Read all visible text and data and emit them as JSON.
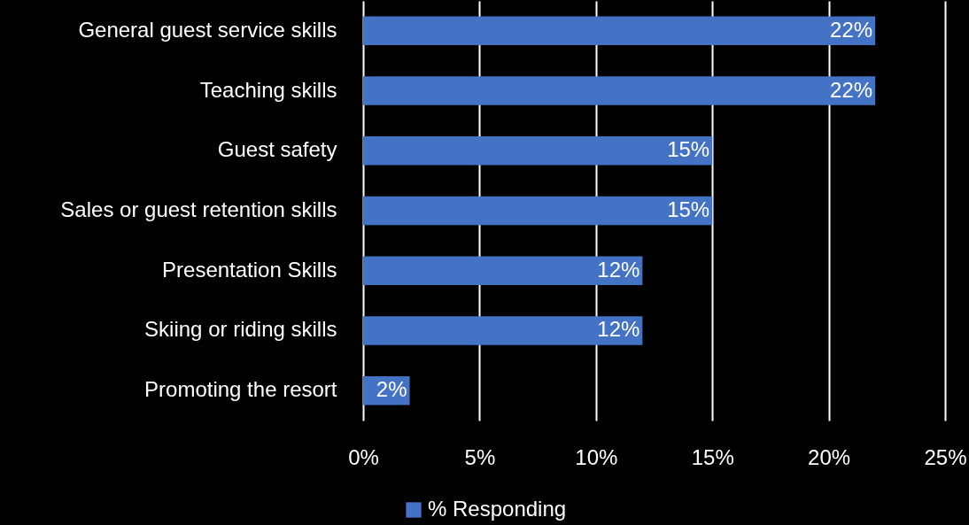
{
  "chart_data": {
    "type": "bar",
    "orientation": "horizontal",
    "categories": [
      "General guest service skills",
      "Teaching skills",
      "Guest safety",
      "Sales or guest retention skills",
      "Presentation Skills",
      "Skiing or riding skills",
      "Promoting the resort"
    ],
    "series": [
      {
        "name": "% Responding",
        "color": "#4472c4",
        "values": [
          22,
          22,
          15,
          15,
          12,
          12,
          2
        ],
        "value_labels": [
          "22%",
          "22%",
          "15%",
          "15%",
          "12%",
          "12%",
          "2%"
        ]
      }
    ],
    "xlim": [
      0,
      25
    ],
    "xticks": [
      {
        "value": 0,
        "label": "0%"
      },
      {
        "value": 5,
        "label": "5%"
      },
      {
        "value": 10,
        "label": "10%"
      },
      {
        "value": 15,
        "label": "15%"
      },
      {
        "value": 20,
        "label": "20%"
      },
      {
        "value": 25,
        "label": "25%"
      }
    ],
    "grid": "x",
    "legend": "bottom"
  }
}
